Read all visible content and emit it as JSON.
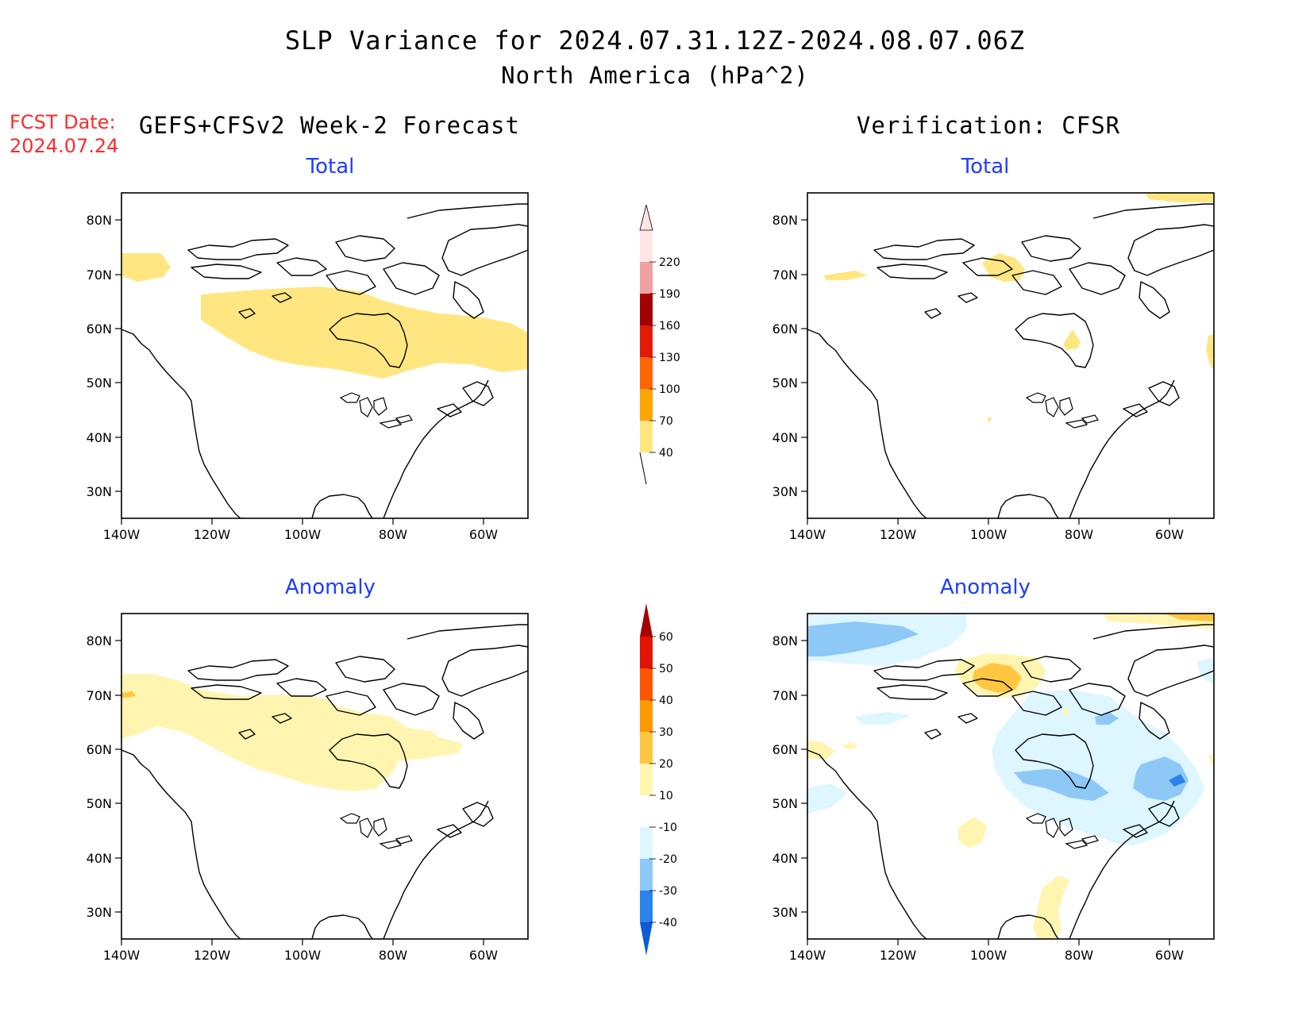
{
  "title": {
    "line1": "SLP Variance for 2024.07.31.12Z-2024.08.07.06Z",
    "line2": "North America (hPa^2)"
  },
  "fcst": {
    "label": "FCST Date:",
    "date": "2024.07.24"
  },
  "columns": {
    "left": "GEFS+CFSv2 Week-2 Forecast",
    "right": "Verification: CFSR"
  },
  "panel_titles": {
    "total": "Total",
    "anomaly": "Anomaly"
  },
  "axes": {
    "lon_labels": [
      "140W",
      "120W",
      "100W",
      "80W",
      "60W"
    ],
    "lat_labels": [
      "80N",
      "70N",
      "60N",
      "50N",
      "40N",
      "30N"
    ]
  },
  "colorbars": {
    "total": {
      "labels": [
        "40",
        "70",
        "100",
        "130",
        "160",
        "190",
        "220"
      ],
      "colors": [
        "#ffe680",
        "#ffa500",
        "#ff6600",
        "#e21b05",
        "#a50000",
        "#f0a0a0",
        "#ffe5e5"
      ]
    },
    "anomaly": {
      "labels": [
        "-40",
        "-30",
        "-20",
        "-10",
        "10",
        "20",
        "30",
        "40",
        "50",
        "60"
      ],
      "colors": [
        "#0a5bd6",
        "#2b82ea",
        "#8ec8f7",
        "#ddf6ff",
        "#ffffff",
        "#fff5b0",
        "#ffc642",
        "#ff9900",
        "#ff5500",
        "#e01400",
        "#a60000"
      ]
    }
  },
  "icon": "geographic-map-panels"
}
